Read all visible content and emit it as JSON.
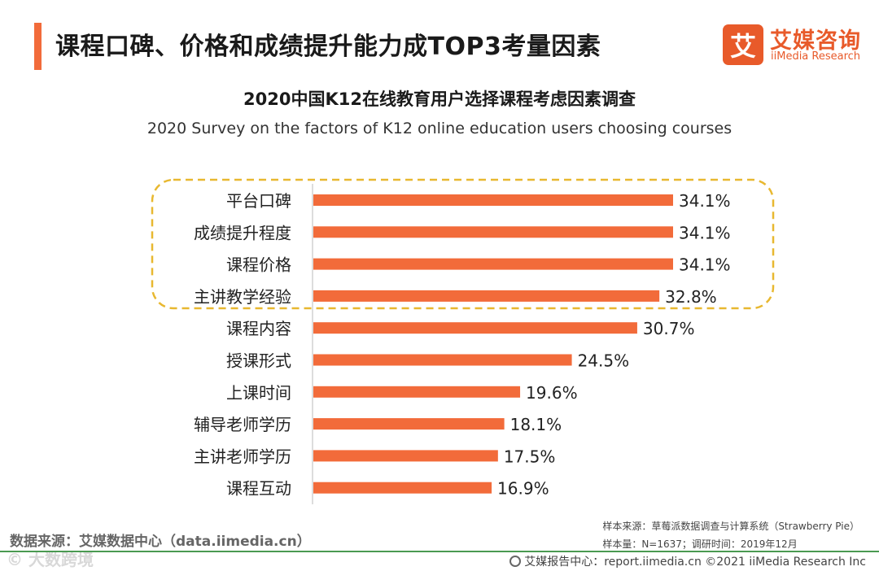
{
  "header": {
    "title": "课程口碑、价格和成绩提升能力成TOP3考量因素",
    "logo_badge": "艾",
    "logo_cn": "艾媒咨询",
    "logo_en": "iiMedia Research"
  },
  "chart_data": {
    "type": "bar",
    "orientation": "horizontal",
    "title": "2020中国K12在线教育用户选择课程考虑因素调查",
    "subtitle": "2020 Survey on the factors of K12 online education users choosing courses",
    "categories": [
      "平台口碑",
      "成绩提升程度",
      "课程价格",
      "主讲教学经验",
      "课程内容",
      "授课形式",
      "上课时间",
      "辅导老师学历",
      "主讲老师学历",
      "课程互动"
    ],
    "values": [
      34.1,
      34.1,
      34.1,
      32.8,
      30.7,
      24.5,
      19.6,
      18.1,
      17.5,
      16.9
    ],
    "value_labels": [
      "34.1%",
      "34.1%",
      "34.1%",
      "32.8%",
      "30.7%",
      "24.5%",
      "19.6%",
      "18.1%",
      "17.5%",
      "16.9%"
    ],
    "unit": "%",
    "xlim": [
      0,
      34.1
    ],
    "highlight": "top 4 categories enclosed in dashed box",
    "bar_color": "#f26b3a",
    "highlight_color": "#e8b830"
  },
  "footer": {
    "data_source": "数据来源：艾媒数据中心（data.iimedia.cn）",
    "sample_source": "样本来源：草莓派数据调查与计算系统（Strawberry Pie）",
    "sample_size": "样本量：N=1637；调研时间：2019年12月",
    "report_center": "艾媒报告中心：report.iimedia.cn  ©2021 iiMedia Research  Inc",
    "watermark": "© 大数跨境"
  }
}
